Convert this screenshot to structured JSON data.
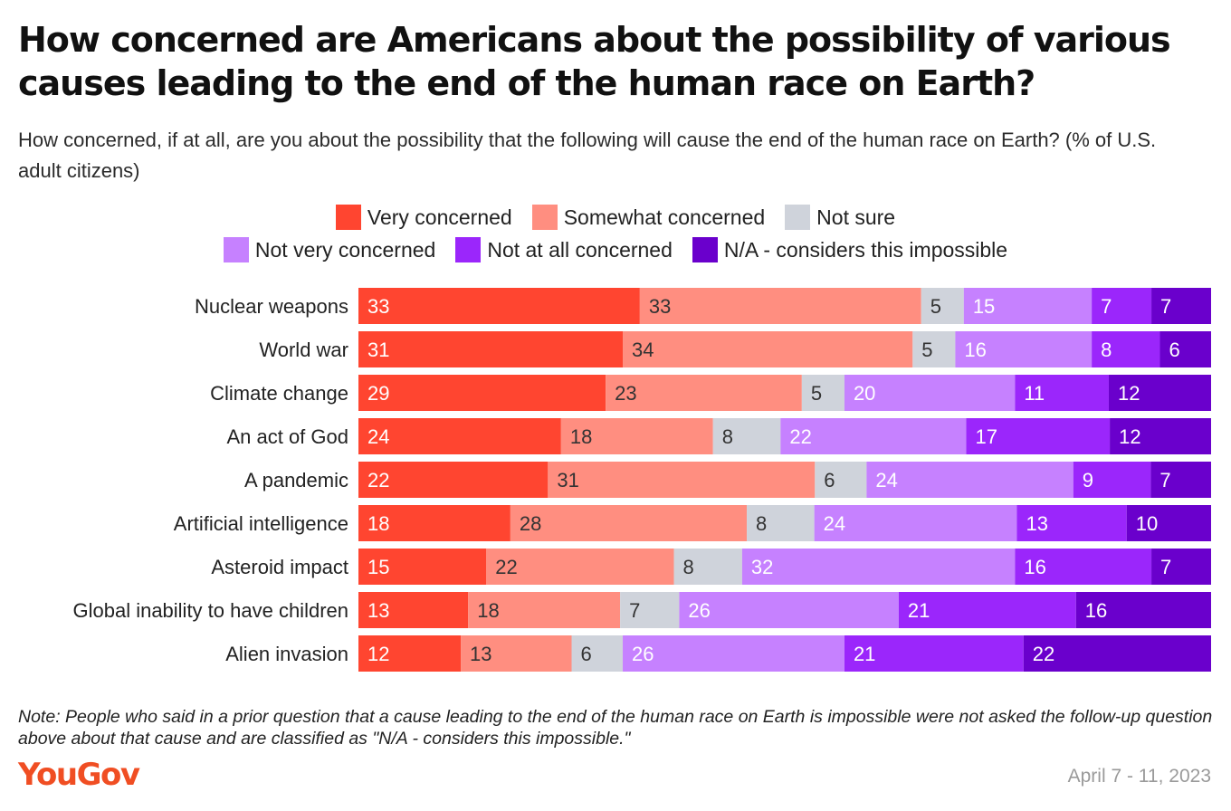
{
  "title": "How concerned are Americans about the possibility of various causes leading to the end of the human race on Earth?",
  "subtitle": "How concerned, if at all, are you about the possibility that the following will cause the end of the human race on Earth? (% of U.S. adult citizens)",
  "note": "Note: People who said in a prior question that a cause leading to the end of the human race on Earth is impossible were not asked the follow-up question above about that cause and are classified as \"N/A - considers this impossible.\"",
  "logo": "YouGov",
  "date": "April 7 - 11, 2023",
  "chart_data": {
    "type": "bar",
    "orientation": "horizontal",
    "stacked": true,
    "title": "How concerned are Americans about the possibility of various causes leading to the end of the human race on Earth?",
    "xlabel": "",
    "ylabel": "",
    "xlim": [
      0,
      100
    ],
    "grid": false,
    "legend_position": "top-center",
    "categories": [
      "Nuclear weapons",
      "World war",
      "Climate change",
      "An act of God",
      "A pandemic",
      "Artificial intelligence",
      "Asteroid impact",
      "Global inability to have children",
      "Alien invasion"
    ],
    "series": [
      {
        "name": "Very concerned",
        "color": "#ff4530",
        "label_color": "#ffffff",
        "values": [
          33,
          31,
          29,
          24,
          22,
          18,
          15,
          13,
          12
        ]
      },
      {
        "name": "Somewhat concerned",
        "color": "#ff8e80",
        "label_color": "#333333",
        "values": [
          33,
          34,
          23,
          18,
          31,
          28,
          22,
          18,
          13
        ]
      },
      {
        "name": "Not sure",
        "color": "#cfd3db",
        "label_color": "#333333",
        "values": [
          5,
          5,
          5,
          8,
          6,
          8,
          8,
          7,
          6
        ]
      },
      {
        "name": "Not very concerned",
        "color": "#c681ff",
        "label_color": "#ffffff",
        "values": [
          15,
          16,
          20,
          22,
          24,
          24,
          32,
          26,
          26
        ]
      },
      {
        "name": "Not at all concerned",
        "color": "#9b26fb",
        "label_color": "#ffffff",
        "values": [
          7,
          8,
          11,
          17,
          9,
          13,
          16,
          21,
          21
        ]
      },
      {
        "name": "N/A - considers this impossible",
        "color": "#6a00cc",
        "label_color": "#ffffff",
        "values": [
          7,
          6,
          12,
          12,
          7,
          10,
          7,
          16,
          22
        ]
      }
    ]
  }
}
